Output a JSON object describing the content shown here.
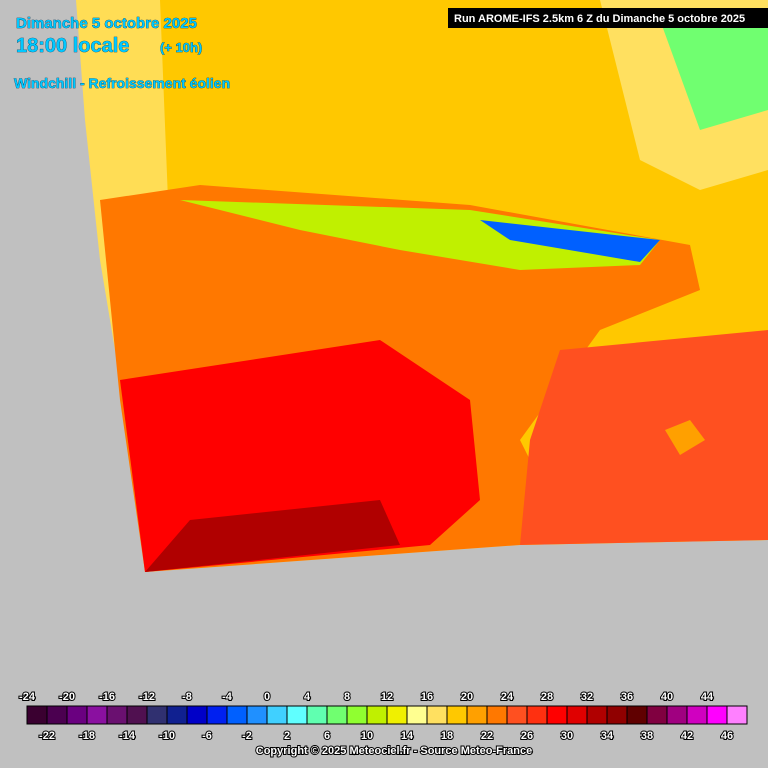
{
  "header": {
    "date": "Dimanche 5 octobre 2025",
    "time": "18:00 locale",
    "offset": "(+ 10h)",
    "subtitle": "Windchill - Refroissement éolien",
    "run": "Run AROME-IFS 2.5km 6 Z du Dimanche 5 octobre 2025"
  },
  "legend": {
    "values": [
      -24,
      -22,
      -20,
      -18,
      -16,
      -14,
      -12,
      -10,
      -8,
      -6,
      -4,
      -2,
      0,
      2,
      4,
      6,
      8,
      10,
      12,
      14,
      16,
      18,
      20,
      22,
      24,
      26,
      28,
      30,
      32,
      34,
      36,
      38,
      40,
      42,
      44,
      46
    ],
    "colors": [
      "#3a0030",
      "#4b0050",
      "#6a0080",
      "#8a10a0",
      "#6a1070",
      "#501050",
      "#303070",
      "#102090",
      "#0000c8",
      "#0020f0",
      "#0060ff",
      "#2090ff",
      "#40d0ff",
      "#60ffff",
      "#60ffb0",
      "#70ff70",
      "#90ff30",
      "#c0f000",
      "#f0f000",
      "#ffff90",
      "#ffe060",
      "#ffc800",
      "#ffa000",
      "#ff7800",
      "#ff5020",
      "#ff3010",
      "#ff0000",
      "#e00000",
      "#b00000",
      "#900000",
      "#600000",
      "#800040",
      "#a00080",
      "#d000c0",
      "#ff00ff",
      "#ff80ff"
    ]
  },
  "footer": {
    "copyright": "Copyright © 2025 Meteociel.fr - Source Meteo-France"
  }
}
